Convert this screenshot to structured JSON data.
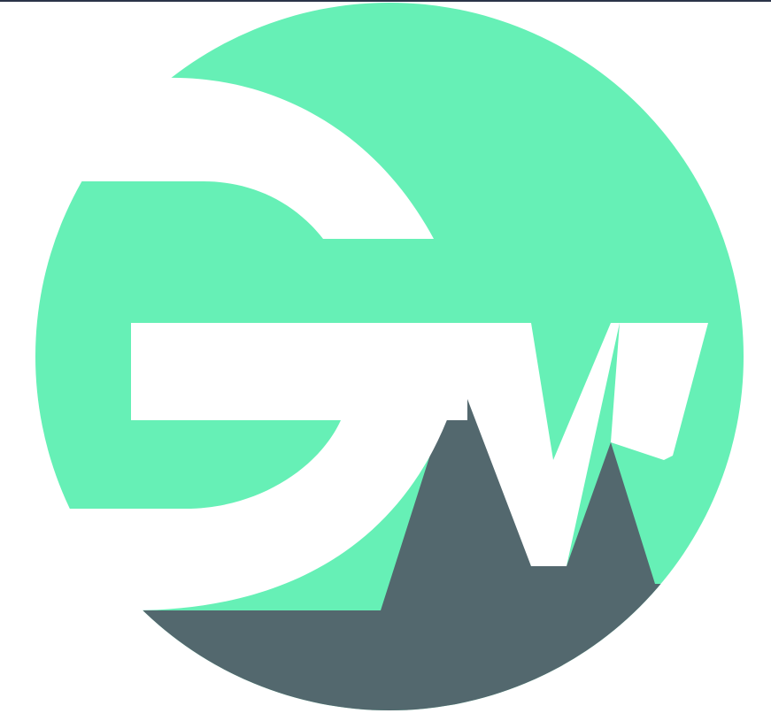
{
  "logo": {
    "icon": "gw-monogram-logo-icon",
    "colors": {
      "mint": "#66F0B6",
      "slate": "#53686E",
      "background": "#FFFFFF",
      "border": "#2B3348"
    }
  }
}
